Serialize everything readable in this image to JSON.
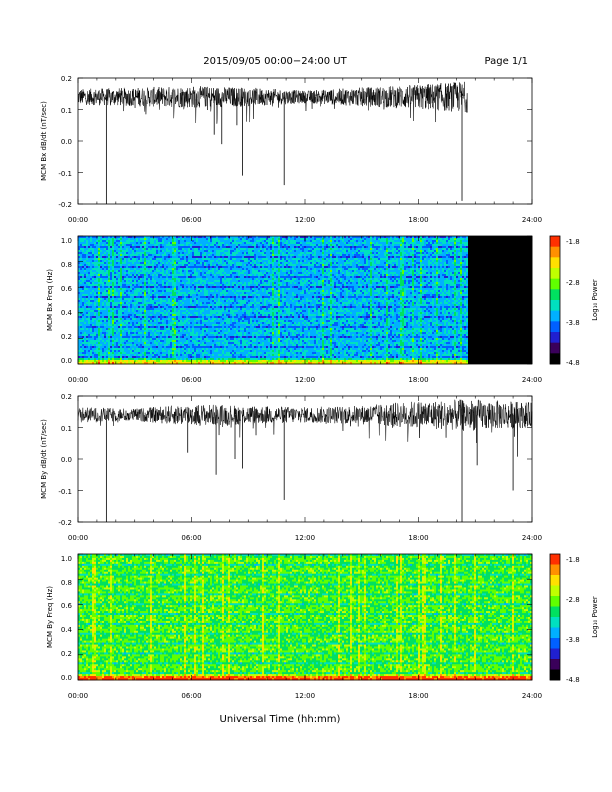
{
  "header": {
    "title": "2015/09/05  00:00−24:00 UT",
    "page": "Page 1/1"
  },
  "footer": {
    "xlabel": "Universal Time (hh:mm)"
  },
  "x_ticks": [
    "00:00",
    "06:00",
    "12:00",
    "18:00",
    "24:00"
  ],
  "colorbar": {
    "label": "Log₁₀ Power",
    "ticks": [
      "-1.8",
      "-2.8",
      "-3.8",
      "-4.8"
    ],
    "colors": [
      "#000000",
      "#3a005a",
      "#2020d0",
      "#0060ff",
      "#00b0ff",
      "#00e0c0",
      "#00e060",
      "#60ff00",
      "#c0ff00",
      "#ffe000",
      "#ff9000",
      "#ff3000",
      "#ff0000"
    ]
  },
  "chart_data": [
    {
      "type": "line",
      "ylabel": "MCM Bx dB/dt (nT/sec)",
      "xlim": [
        0,
        24
      ],
      "ylim": [
        -0.2,
        0.2
      ],
      "y_ticks": [
        "0.2",
        "0.1",
        "0.0",
        "-0.1",
        "-0.2"
      ],
      "baseline": 0.14,
      "noise_envelope": [
        {
          "t": 0,
          "amp": 0.025
        },
        {
          "t": 3,
          "amp": 0.03
        },
        {
          "t": 6,
          "amp": 0.035
        },
        {
          "t": 9,
          "amp": 0.03
        },
        {
          "t": 12,
          "amp": 0.02
        },
        {
          "t": 15,
          "amp": 0.03
        },
        {
          "t": 18,
          "amp": 0.04
        },
        {
          "t": 20.5,
          "amp": 0.05
        }
      ],
      "data_end_hour": 20.6,
      "spikes": [
        {
          "t": 1.5,
          "y": -0.2
        },
        {
          "t": 7.2,
          "y": 0.02
        },
        {
          "t": 7.6,
          "y": -0.01
        },
        {
          "t": 8.4,
          "y": 0.05
        },
        {
          "t": 8.7,
          "y": -0.11
        },
        {
          "t": 10.9,
          "y": -0.14
        },
        {
          "t": 20.3,
          "y": -0.19
        }
      ]
    },
    {
      "type": "heatmap",
      "ylabel": "MCM Bx Freq (Hz)",
      "xlim": [
        0,
        24
      ],
      "ylim": [
        0.0,
        1.0
      ],
      "y_ticks": [
        "1.0",
        "0.8",
        "0.6",
        "0.4",
        "0.2",
        "0.0"
      ],
      "power_range": [
        -4.8,
        -1.8
      ],
      "data_end_hour": 20.6,
      "typical_power": -3.6
    },
    {
      "type": "line",
      "ylabel": "MCM By dB/dt (nT/sec)",
      "xlim": [
        0,
        24
      ],
      "ylim": [
        -0.2,
        0.2
      ],
      "y_ticks": [
        "0.2",
        "0.1",
        "0.0",
        "-0.1",
        "-0.2"
      ],
      "baseline": 0.14,
      "noise_envelope": [
        {
          "t": 0,
          "amp": 0.025
        },
        {
          "t": 3,
          "amp": 0.02
        },
        {
          "t": 6,
          "amp": 0.035
        },
        {
          "t": 9,
          "amp": 0.03
        },
        {
          "t": 12,
          "amp": 0.025
        },
        {
          "t": 15,
          "amp": 0.03
        },
        {
          "t": 18,
          "amp": 0.045
        },
        {
          "t": 21,
          "amp": 0.05
        },
        {
          "t": 24,
          "amp": 0.04
        }
      ],
      "data_end_hour": 24,
      "spikes": [
        {
          "t": 1.5,
          "y": -0.2
        },
        {
          "t": 5.8,
          "y": 0.02
        },
        {
          "t": 7.3,
          "y": -0.05
        },
        {
          "t": 8.3,
          "y": 0.0
        },
        {
          "t": 8.7,
          "y": -0.03
        },
        {
          "t": 10.9,
          "y": -0.13
        },
        {
          "t": 20.3,
          "y": -0.2
        },
        {
          "t": 21.1,
          "y": -0.02
        },
        {
          "t": 23.0,
          "y": -0.1
        }
      ]
    },
    {
      "type": "heatmap",
      "ylabel": "MCM By Freq (Hz)",
      "xlim": [
        0,
        24
      ],
      "ylim": [
        0.0,
        1.0
      ],
      "y_ticks": [
        "1.0",
        "0.8",
        "0.6",
        "0.4",
        "0.2",
        "0.0"
      ],
      "power_range": [
        -4.8,
        -1.8
      ],
      "data_end_hour": 24,
      "typical_power": -3.0
    }
  ]
}
